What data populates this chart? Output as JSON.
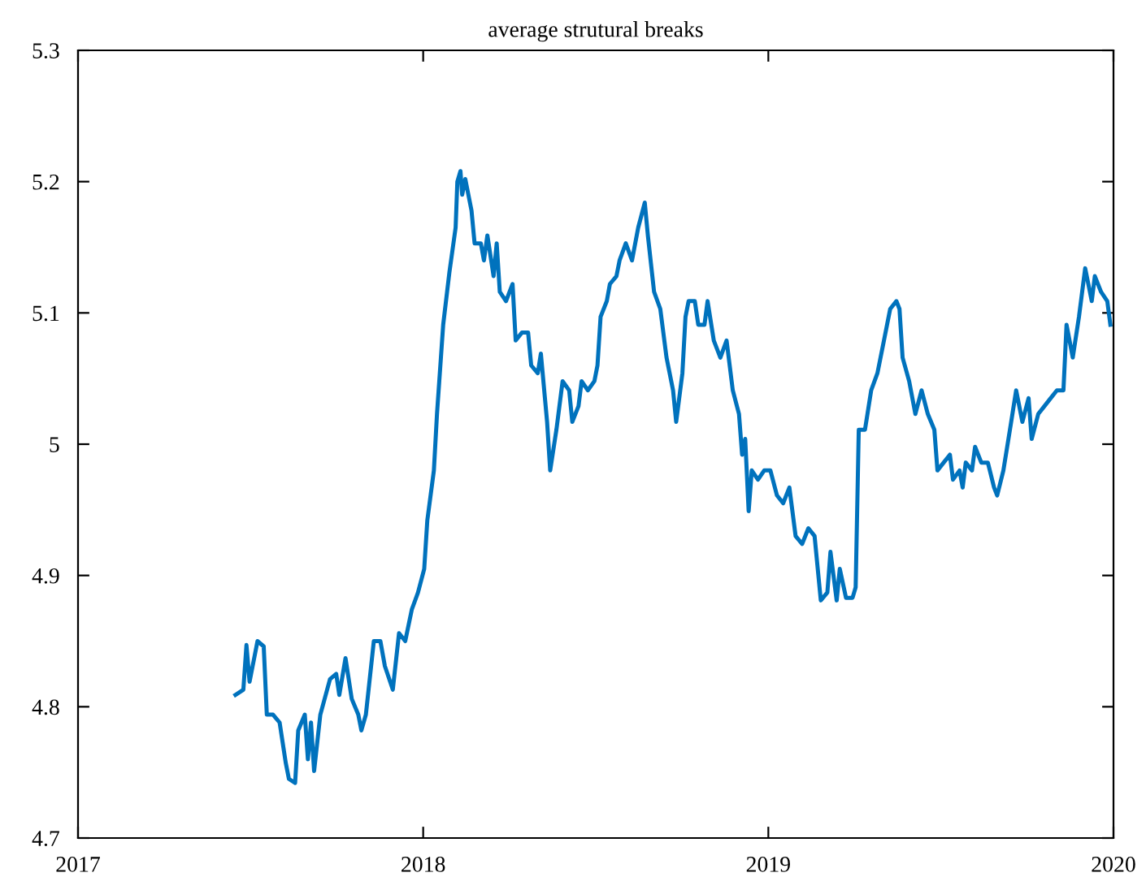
{
  "chart_data": {
    "type": "line",
    "title": "average strutural breaks",
    "xlim": [
      2017,
      2020
    ],
    "xticks": [
      2017,
      2018,
      2019,
      2020
    ],
    "ylim": [
      4.7,
      5.3
    ],
    "yticks": [
      4.7,
      4.8,
      4.9,
      5,
      5.1,
      5.2,
      5.3
    ],
    "grid": false,
    "legend": false,
    "marker": "none",
    "line_style": "solid",
    "series": [
      {
        "color": "#0072bd",
        "x": [
          2017.456,
          2017.479,
          2017.488,
          2017.497,
          2017.52,
          2017.538,
          2017.547,
          2017.565,
          2017.584,
          2017.602,
          2017.611,
          2017.629,
          2017.638,
          2017.657,
          2017.666,
          2017.675,
          2017.684,
          2017.702,
          2017.73,
          2017.748,
          2017.757,
          2017.775,
          2017.793,
          2017.812,
          2017.821,
          2017.834,
          2017.857,
          2017.876,
          2017.889,
          2017.912,
          2017.93,
          2017.948,
          2017.967,
          2017.985,
          2018.003,
          2018.012,
          2018.031,
          2018.04,
          2018.058,
          2018.076,
          2018.094,
          2018.099,
          2018.108,
          2018.113,
          2018.122,
          2018.14,
          2018.149,
          2018.167,
          2018.176,
          2018.186,
          2018.204,
          2018.213,
          2018.222,
          2018.24,
          2018.259,
          2018.268,
          2018.286,
          2018.304,
          2018.313,
          2018.332,
          2018.341,
          2018.359,
          2018.368,
          2018.386,
          2018.404,
          2018.423,
          2018.432,
          2018.45,
          2018.459,
          2018.477,
          2018.496,
          2018.505,
          2018.514,
          2018.532,
          2018.541,
          2018.56,
          2018.569,
          2018.587,
          2018.605,
          2018.623,
          2018.642,
          2018.651,
          2018.669,
          2018.687,
          2018.705,
          2018.724,
          2018.733,
          2018.751,
          2018.76,
          2018.769,
          2018.787,
          2018.797,
          2018.815,
          2018.824,
          2018.842,
          2018.861,
          2018.879,
          2018.897,
          2018.915,
          2018.924,
          2018.933,
          2018.943,
          2018.952,
          2018.97,
          2018.988,
          2019.006,
          2019.025,
          2019.043,
          2019.061,
          2019.079,
          2019.098,
          2019.116,
          2019.134,
          2019.152,
          2019.171,
          2019.18,
          2019.198,
          2019.207,
          2019.225,
          2019.244,
          2019.253,
          2019.262,
          2019.28,
          2019.298,
          2019.316,
          2019.335,
          2019.353,
          2019.371,
          2019.38,
          2019.389,
          2019.408,
          2019.426,
          2019.444,
          2019.462,
          2019.481,
          2019.49,
          2019.508,
          2019.526,
          2019.535,
          2019.554,
          2019.563,
          2019.572,
          2019.59,
          2019.599,
          2019.617,
          2019.636,
          2019.654,
          2019.663,
          2019.681,
          2019.7,
          2019.718,
          2019.736,
          2019.754,
          2019.763,
          2019.782,
          2019.8,
          2019.818,
          2019.836,
          2019.855,
          2019.864,
          2019.882,
          2019.9,
          2019.918,
          2019.937,
          2019.946,
          2019.964,
          2019.982,
          2019.991
        ],
        "values": [
          4.809,
          4.813,
          4.847,
          4.819,
          4.85,
          4.846,
          4.794,
          4.794,
          4.788,
          4.757,
          4.745,
          4.742,
          4.782,
          4.794,
          4.76,
          4.788,
          4.751,
          4.794,
          4.821,
          4.825,
          4.809,
          4.837,
          4.806,
          4.794,
          4.782,
          4.794,
          4.85,
          4.85,
          4.831,
          4.813,
          4.856,
          4.85,
          4.874,
          4.887,
          4.905,
          4.942,
          4.98,
          5.023,
          5.091,
          5.131,
          5.165,
          5.2,
          5.208,
          5.19,
          5.202,
          5.178,
          5.153,
          5.153,
          5.14,
          5.159,
          5.128,
          5.153,
          5.116,
          5.109,
          5.122,
          5.079,
          5.085,
          5.085,
          5.06,
          5.054,
          5.069,
          5.017,
          4.98,
          5.011,
          5.048,
          5.041,
          5.017,
          5.029,
          5.048,
          5.041,
          5.048,
          5.06,
          5.097,
          5.109,
          5.122,
          5.128,
          5.14,
          5.153,
          5.14,
          5.165,
          5.184,
          5.159,
          5.116,
          5.103,
          5.066,
          5.041,
          5.017,
          5.054,
          5.097,
          5.109,
          5.109,
          5.091,
          5.091,
          5.109,
          5.079,
          5.066,
          5.079,
          5.041,
          5.023,
          4.992,
          5.004,
          4.949,
          4.98,
          4.973,
          4.98,
          4.98,
          4.961,
          4.955,
          4.967,
          4.93,
          4.924,
          4.936,
          4.93,
          4.881,
          4.887,
          4.918,
          4.881,
          4.905,
          4.883,
          4.883,
          4.891,
          5.011,
          5.011,
          5.041,
          5.054,
          5.079,
          5.103,
          5.109,
          5.103,
          5.066,
          5.048,
          5.023,
          5.041,
          5.023,
          5.011,
          4.98,
          4.986,
          4.992,
          4.973,
          4.98,
          4.967,
          4.986,
          4.98,
          4.998,
          4.986,
          4.986,
          4.967,
          4.961,
          4.98,
          5.011,
          5.041,
          5.017,
          5.035,
          5.004,
          5.023,
          5.029,
          5.035,
          5.041,
          5.041,
          5.091,
          5.066,
          5.097,
          5.134,
          5.109,
          5.128,
          5.116,
          5.109,
          5.091
        ]
      }
    ]
  }
}
